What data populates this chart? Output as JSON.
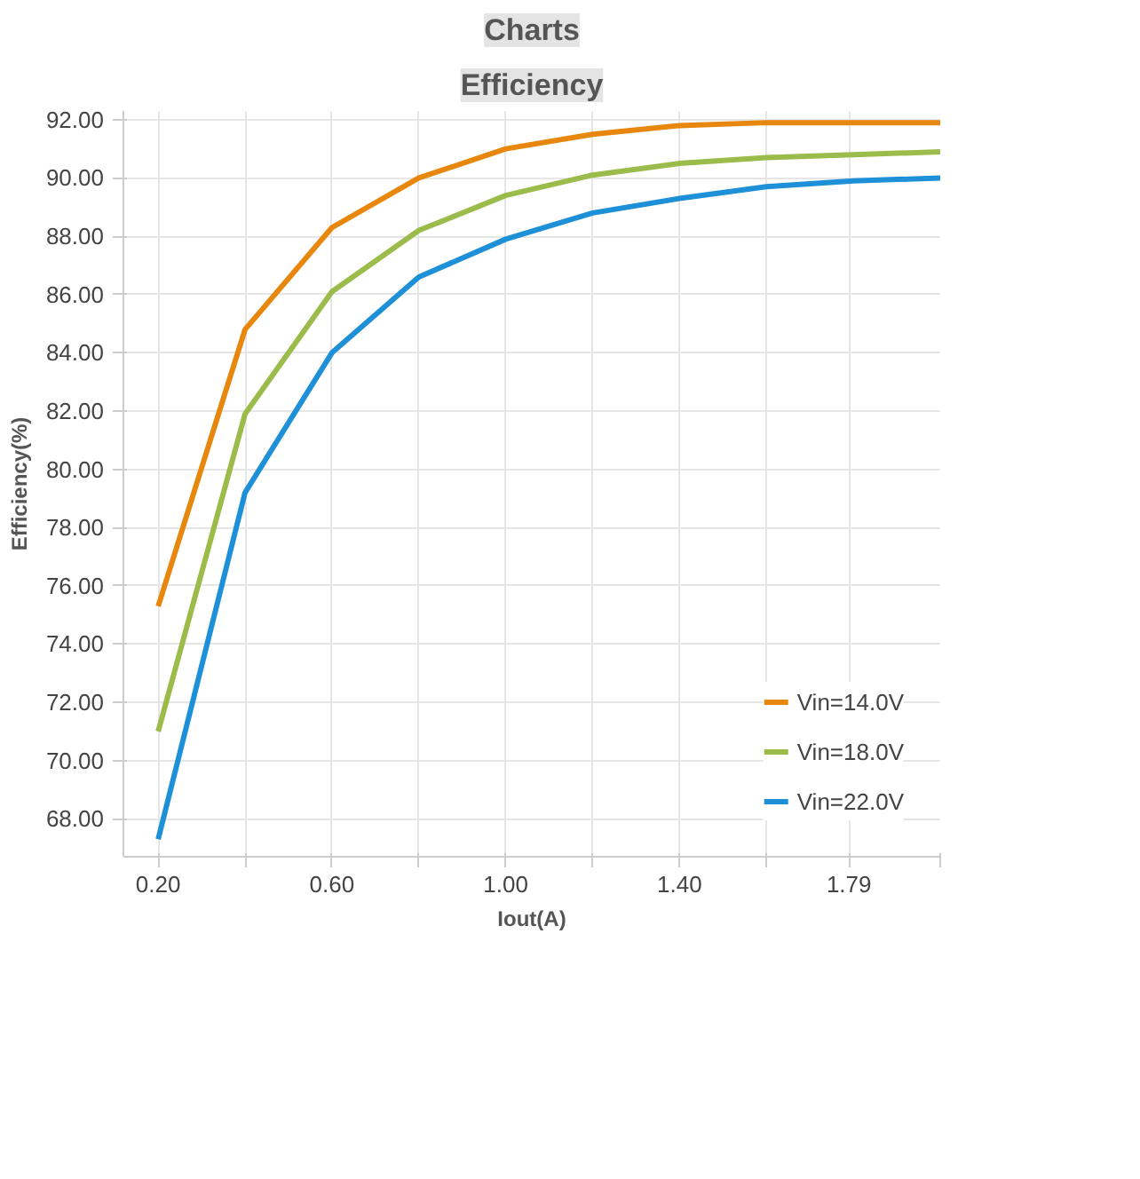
{
  "chart_data": {
    "type": "line",
    "title": "Charts",
    "subtitle": "Efficiency",
    "xlabel": "Iout(A)",
    "ylabel": "Efficiency(%)",
    "x": [
      0.2,
      0.4,
      0.6,
      0.8,
      1.0,
      1.2,
      1.4,
      1.6,
      1.8,
      2.0
    ],
    "series": [
      {
        "name": "Vin=14.0V",
        "color": "#e8870e",
        "values": [
          75.3,
          84.8,
          88.3,
          90.0,
          91.0,
          91.5,
          91.8,
          91.9,
          91.9,
          91.9
        ]
      },
      {
        "name": "Vin=18.0V",
        "color": "#9bbb4a",
        "values": [
          71.0,
          81.9,
          86.1,
          88.2,
          89.4,
          90.1,
          90.5,
          90.7,
          90.8,
          90.9
        ]
      },
      {
        "name": "Vin=22.0V",
        "color": "#1e90d8",
        "values": [
          67.3,
          79.2,
          84.0,
          86.6,
          87.9,
          88.8,
          89.3,
          89.7,
          89.9,
          90.0
        ]
      }
    ],
    "xlim": [
      0.12,
      2.0
    ],
    "ylim": [
      66.7,
      92.3
    ],
    "xticks": [
      {
        "value": 0.2,
        "label": "0.20"
      },
      {
        "value": 0.4,
        "label": null
      },
      {
        "value": 0.6,
        "label": "0.60"
      },
      {
        "value": 0.8,
        "label": null
      },
      {
        "value": 1.0,
        "label": "1.00"
      },
      {
        "value": 1.2,
        "label": null
      },
      {
        "value": 1.4,
        "label": "1.40"
      },
      {
        "value": 1.6,
        "label": null
      },
      {
        "value": 1.79,
        "label": "1.79"
      },
      {
        "value": 2.0,
        "label": null
      }
    ],
    "yticks": [
      {
        "value": 68,
        "label": "68.00"
      },
      {
        "value": 70,
        "label": "70.00"
      },
      {
        "value": 72,
        "label": "72.00"
      },
      {
        "value": 74,
        "label": "74.00"
      },
      {
        "value": 76,
        "label": "76.00"
      },
      {
        "value": 78,
        "label": "78.00"
      },
      {
        "value": 80,
        "label": "80.00"
      },
      {
        "value": 82,
        "label": "82.00"
      },
      {
        "value": 84,
        "label": "84.00"
      },
      {
        "value": 86,
        "label": "86.00"
      },
      {
        "value": 88,
        "label": "88.00"
      },
      {
        "value": 90,
        "label": "90.00"
      },
      {
        "value": 92,
        "label": "92.00"
      }
    ],
    "grid": true,
    "legend": "bottom right",
    "marker": "none",
    "line_style": "solid"
  }
}
